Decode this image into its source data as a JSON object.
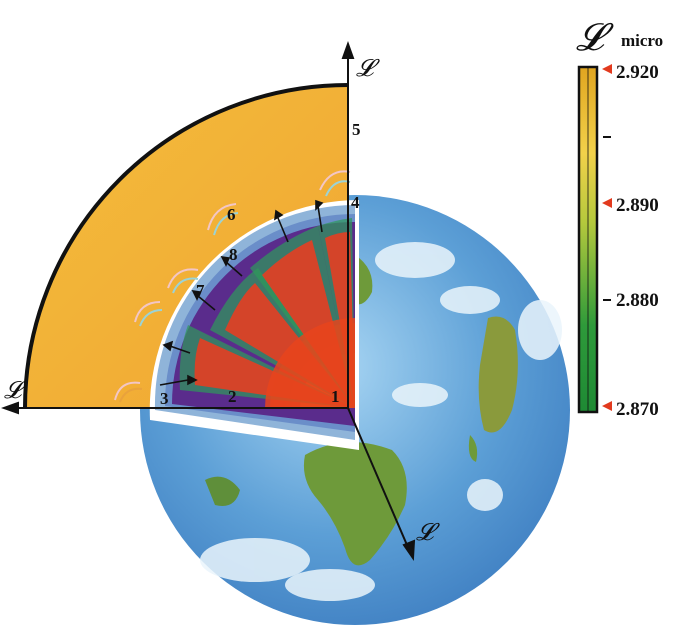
{
  "axis_symbol": "𝓛",
  "axis_labels": {
    "vertical": "𝓛",
    "horizontal": "𝓛",
    "diagonal": "𝓛"
  },
  "point_labels": [
    "1",
    "2",
    "3",
    "4",
    "5",
    "6",
    "7",
    "8"
  ],
  "colorbar": {
    "symbol": "𝓛",
    "subscript": "micro",
    "ticks": [
      "2.920",
      "2.890",
      "2.880",
      "2.870"
    ],
    "marker_color": "#e23a1e",
    "gradient_colors": [
      "#e0a520",
      "#f2d14a",
      "#b5c93c",
      "#2e9a3a",
      "#1e8a34"
    ]
  },
  "colors": {
    "outer_shell": "#f2b437",
    "ocean": "#6fb0e0",
    "land": "#6e9a3a",
    "wave_purple": "#5a2c8c",
    "core": "#e8441c"
  }
}
